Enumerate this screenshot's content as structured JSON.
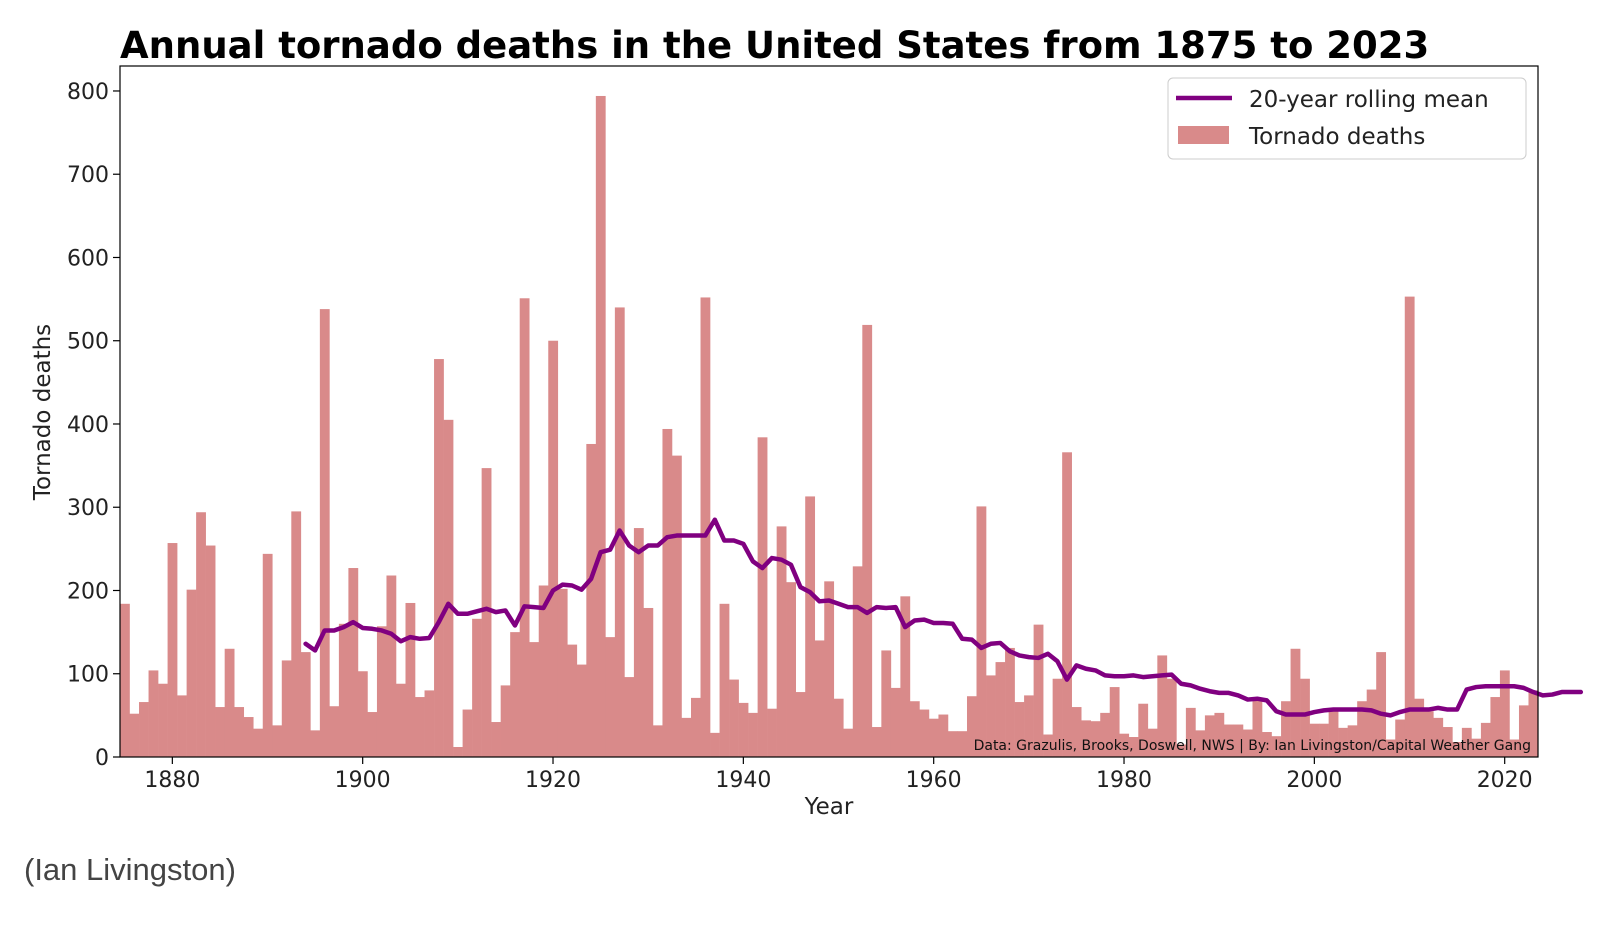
{
  "chart_data": {
    "type": "bar",
    "title": "Annual tornado deaths in the United States from 1875 to 2023",
    "xlabel": "Year",
    "ylabel": "Tornado deaths",
    "xlim": [
      1874.5,
      2023.5
    ],
    "ylim": [
      0,
      830
    ],
    "xticks": [
      1880,
      1900,
      1920,
      1940,
      1960,
      1980,
      2000,
      2020
    ],
    "yticks": [
      0,
      100,
      200,
      300,
      400,
      500,
      600,
      700,
      800
    ],
    "grid": false,
    "legend_position": "top-right",
    "annotation": "Data: Grazulis, Brooks, Doswell, NWS | By: Ian Livingston/Capital Weather Gang",
    "colors": {
      "bars": "#d98a8a",
      "line": "#800080"
    },
    "series": [
      {
        "name": "Tornado deaths",
        "kind": "bar",
        "x_start": 1875,
        "values": [
          184,
          52,
          66,
          104,
          88,
          257,
          74,
          201,
          294,
          254,
          60,
          130,
          60,
          48,
          34,
          244,
          38,
          116,
          295,
          126,
          32,
          538,
          61,
          160,
          227,
          103,
          54,
          157,
          218,
          88,
          185,
          72,
          80,
          478,
          405,
          12,
          57,
          166,
          347,
          42,
          86,
          150,
          551,
          138,
          206,
          500,
          202,
          135,
          111,
          376,
          794,
          144,
          540,
          96,
          275,
          179,
          38,
          394,
          362,
          47,
          71,
          552,
          29,
          184,
          93,
          65,
          53,
          384,
          58,
          277,
          210,
          78,
          313,
          140,
          211,
          70,
          34,
          229,
          519,
          36,
          128,
          83,
          193,
          67,
          57,
          46,
          51,
          31,
          31,
          73,
          301,
          98,
          114,
          131,
          66,
          74,
          159,
          27,
          94,
          366,
          60,
          44,
          43,
          53,
          84,
          28,
          24,
          64,
          34,
          122,
          94,
          15,
          59,
          32,
          50,
          53,
          39,
          39,
          33,
          69,
          30,
          25,
          67,
          130,
          94,
          40,
          40,
          55,
          35,
          38,
          67,
          81,
          126,
          21,
          45,
          553,
          70,
          55,
          47,
          36,
          18,
          35,
          22,
          41,
          72,
          104,
          21,
          62,
          80
        ]
      },
      {
        "name": "20-year rolling mean",
        "kind": "line",
        "x_start": 1894,
        "values": [
          136,
          128,
          152,
          152,
          156,
          162,
          155,
          154,
          152,
          148,
          139,
          144,
          142,
          143,
          162,
          184,
          172,
          172,
          175,
          178,
          174,
          176,
          158,
          181,
          180,
          179,
          200,
          207,
          206,
          201,
          214,
          246,
          249,
          272,
          254,
          246,
          254,
          254,
          264,
          266,
          266,
          266,
          266,
          285,
          260,
          260,
          256,
          235,
          227,
          239,
          237,
          231,
          204,
          198,
          187,
          188,
          184,
          180,
          180,
          173,
          180,
          179,
          180,
          156,
          164,
          165,
          161,
          161,
          160,
          142,
          141,
          131,
          136,
          137,
          127,
          122,
          120,
          119,
          124,
          115,
          93,
          110,
          106,
          104,
          98,
          97,
          97,
          98,
          96,
          97,
          98,
          99,
          88,
          86,
          82,
          79,
          77,
          77,
          74,
          69,
          70,
          68,
          55,
          51,
          51,
          51,
          54,
          56,
          57,
          57,
          57,
          57,
          56,
          52,
          50,
          54,
          57,
          57,
          57,
          59,
          57,
          57,
          81,
          84,
          85,
          85,
          85,
          85,
          83,
          78,
          74,
          75,
          78,
          78,
          78
        ]
      }
    ]
  },
  "caption": "(Ian Livingston)"
}
